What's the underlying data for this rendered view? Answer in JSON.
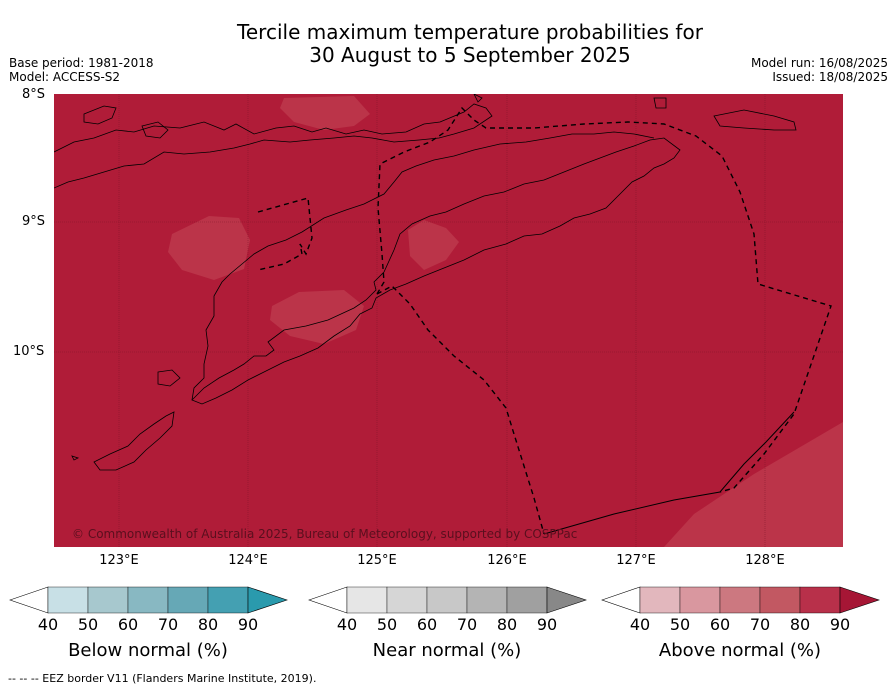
{
  "title": {
    "line1": "Tercile maximum temperature probabilities for",
    "line2": "30 August to 5 September 2025"
  },
  "meta": {
    "base_period": "Base period: 1981-2018",
    "model": "Model: ACCESS-S2",
    "model_run": "Model run: 16/08/2025",
    "issued": "Issued: 18/08/2025"
  },
  "axes": {
    "lat_labels": [
      "8°S",
      "9°S",
      "10°S"
    ],
    "lon_labels": [
      "123°E",
      "124°E",
      "125°E",
      "126°E",
      "127°E",
      "128°E"
    ]
  },
  "map": {
    "extent": {
      "lon_min": 122.5,
      "lon_max": 128.6,
      "lat_min": -11.5,
      "lat_max": -8.0
    },
    "background_category": "Above normal 80–90%",
    "background_color": "#b01c38",
    "patch_color": "#bb3449",
    "copyright": "© Commonwealth of Australia 2025, Bureau of Meteorology, supported by COSPPac"
  },
  "colorbars": [
    {
      "label": "Below normal (%)",
      "ticks": [
        "40",
        "50",
        "60",
        "70",
        "80",
        "90"
      ],
      "colors": [
        "#c8e0e6",
        "#a7c8ce",
        "#88b8c2",
        "#66a8b6",
        "#44a0b2",
        "#2a9aad"
      ]
    },
    {
      "label": "Near normal (%)",
      "ticks": [
        "40",
        "50",
        "60",
        "70",
        "80",
        "90"
      ],
      "colors": [
        "#e6e6e6",
        "#d6d6d6",
        "#c8c8c8",
        "#b4b4b4",
        "#a0a0a0",
        "#888888"
      ]
    },
    {
      "label": "Above normal (%)",
      "ticks": [
        "40",
        "50",
        "60",
        "70",
        "80",
        "90"
      ],
      "colors": [
        "#e2b7bd",
        "#d9979f",
        "#cc7880",
        "#c25862",
        "#b8304a",
        "#a61635"
      ]
    }
  ],
  "footer": "--  --  -- EEZ border V11 (Flanders Marine Institute, 2019)."
}
